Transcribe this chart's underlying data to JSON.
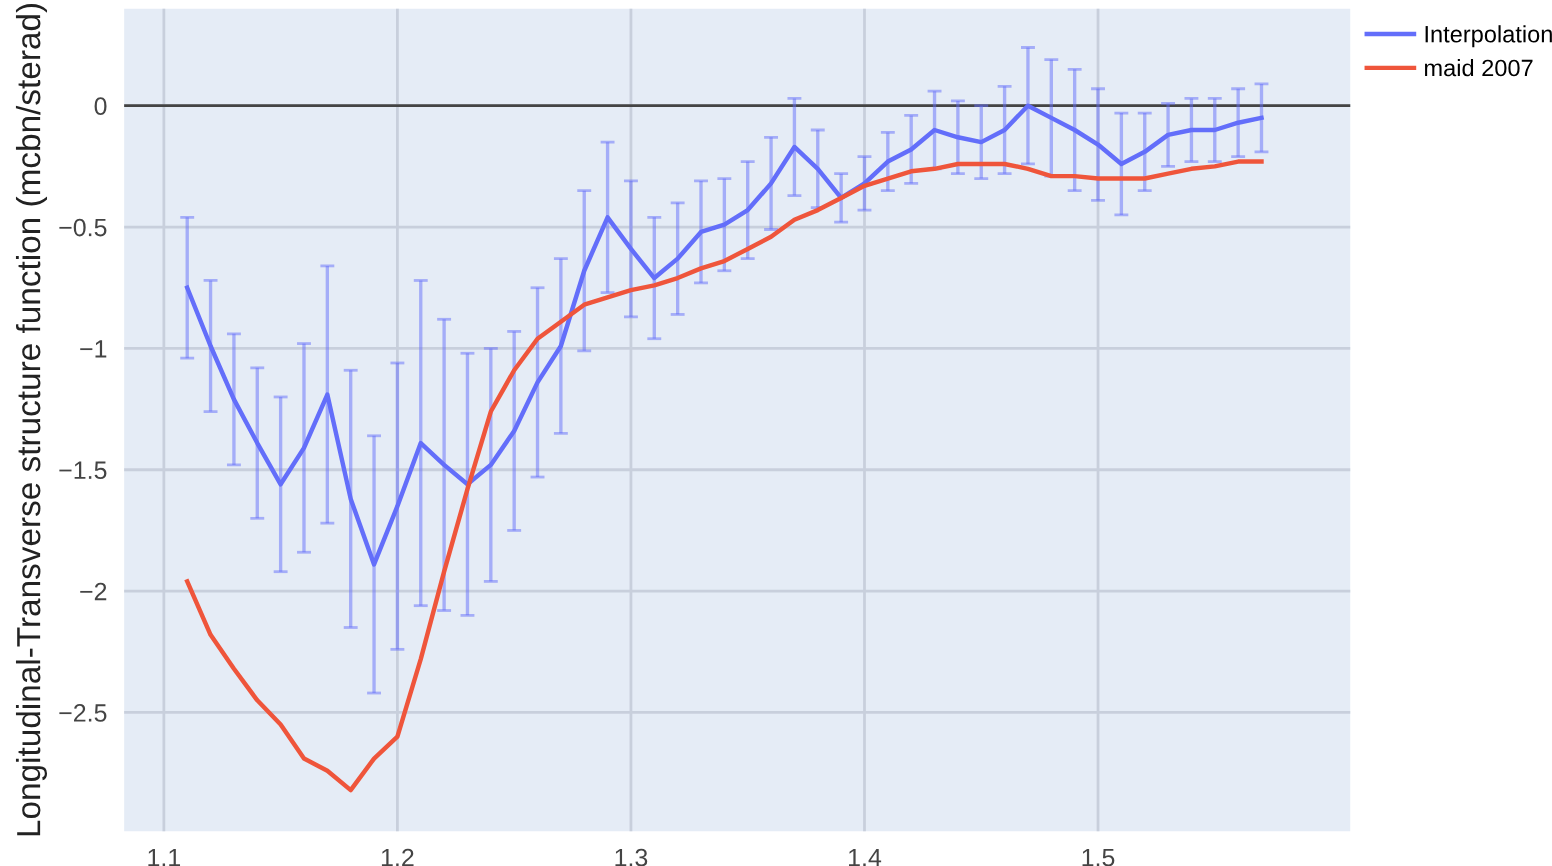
{
  "chart_data": {
    "type": "line",
    "ylabel": "Longitudinal-Transverse structure function (mcbn/sterad)",
    "x": [
      1.11,
      1.12,
      1.13,
      1.14,
      1.15,
      1.16,
      1.17,
      1.18,
      1.19,
      1.2,
      1.21,
      1.22,
      1.23,
      1.24,
      1.25,
      1.26,
      1.27,
      1.28,
      1.29,
      1.3,
      1.31,
      1.32,
      1.33,
      1.34,
      1.35,
      1.36,
      1.37,
      1.38,
      1.39,
      1.4,
      1.41,
      1.42,
      1.43,
      1.44,
      1.45,
      1.46,
      1.47,
      1.48,
      1.49,
      1.5,
      1.51,
      1.52,
      1.53,
      1.54,
      1.55,
      1.56,
      1.57
    ],
    "series": [
      {
        "name": "Interpolation",
        "color": "#636efa",
        "values": [
          -0.75,
          -0.99,
          -1.21,
          -1.39,
          -1.56,
          -1.41,
          -1.19,
          -1.62,
          -1.89,
          -1.65,
          -1.39,
          -1.48,
          -1.56,
          -1.48,
          -1.34,
          -1.14,
          -0.99,
          -0.68,
          -0.46,
          -0.59,
          -0.71,
          -0.63,
          -0.52,
          -0.49,
          -0.43,
          -0.32,
          -0.17,
          -0.26,
          -0.38,
          -0.32,
          -0.23,
          -0.18,
          -0.1,
          -0.13,
          -0.15,
          -0.1,
          0.0,
          -0.05,
          -0.1,
          -0.16,
          -0.24,
          -0.19,
          -0.12,
          -0.1,
          -0.1,
          -0.07,
          -0.05
        ],
        "errors": [
          0.29,
          0.27,
          0.27,
          0.31,
          0.36,
          0.43,
          0.53,
          0.53,
          0.53,
          0.59,
          0.67,
          0.6,
          0.54,
          0.48,
          0.41,
          0.39,
          0.36,
          0.33,
          0.31,
          0.28,
          0.25,
          0.23,
          0.21,
          0.19,
          0.2,
          0.19,
          0.2,
          0.16,
          0.1,
          0.11,
          0.12,
          0.14,
          0.16,
          0.15,
          0.15,
          0.18,
          0.24,
          0.24,
          0.25,
          0.23,
          0.21,
          0.16,
          0.13,
          0.13,
          0.13,
          0.14,
          0.14
        ]
      },
      {
        "name": "maid 2007",
        "color": "#ef553b",
        "values": [
          -1.96,
          -2.18,
          -2.32,
          -2.45,
          -2.55,
          -2.69,
          -2.74,
          -2.82,
          -2.69,
          -2.6,
          -2.28,
          -1.92,
          -1.58,
          -1.26,
          -1.09,
          -0.96,
          -0.89,
          -0.82,
          -0.79,
          -0.76,
          -0.74,
          -0.71,
          -0.67,
          -0.64,
          -0.59,
          -0.54,
          -0.47,
          -0.43,
          -0.38,
          -0.33,
          -0.3,
          -0.27,
          -0.26,
          -0.24,
          -0.24,
          -0.24,
          -0.26,
          -0.29,
          -0.29,
          -0.3,
          -0.3,
          -0.3,
          -0.28,
          -0.26,
          -0.25,
          -0.23,
          -0.23
        ]
      }
    ],
    "xlim": [
      1.083,
      1.608
    ],
    "xticks": [
      1.1,
      1.2,
      1.3,
      1.4,
      1.5
    ],
    "ylim": [
      -2.99,
      0.4
    ],
    "yticks": [
      0,
      {
        "value": -0.5,
        "label": "−0.5"
      },
      {
        "value": -1,
        "label": "−1"
      },
      {
        "value": -1.5,
        "label": "−1.5"
      },
      {
        "value": -2,
        "label": "−2"
      },
      {
        "value": -2.5,
        "label": "−2.5"
      }
    ],
    "ref_lines": [
      {
        "axis": "y",
        "value": 0,
        "color": "#444444"
      }
    ],
    "grid": true,
    "legend": "top right",
    "marker": "none",
    "line_style": "solid"
  }
}
